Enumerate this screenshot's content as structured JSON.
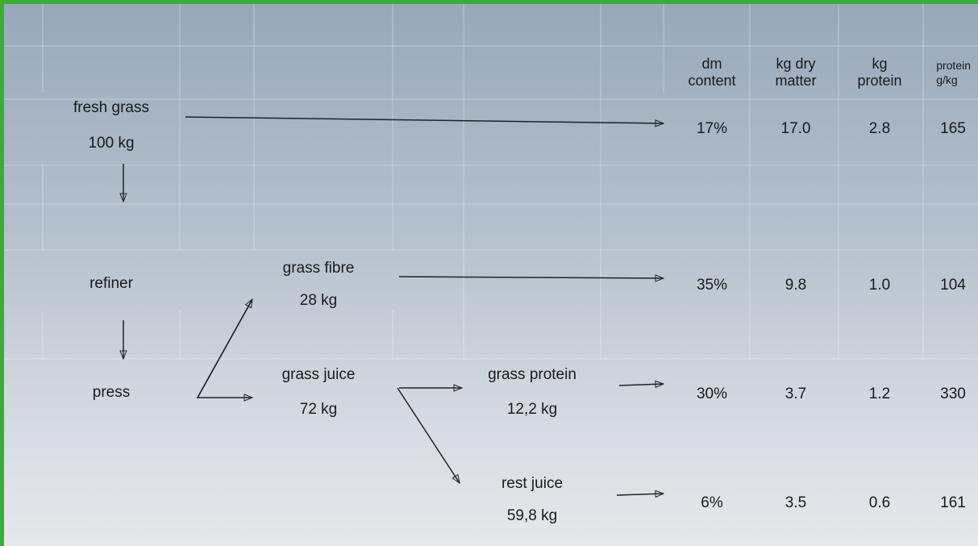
{
  "nodes": [
    {
      "label": "fresh grass",
      "amount": "100 kg"
    },
    {
      "label": "refiner"
    },
    {
      "label": "press"
    },
    {
      "label": "grass fibre",
      "amount": "28 kg"
    },
    {
      "label": "grass juice",
      "amount": "72 kg"
    },
    {
      "label": "grass protein",
      "amount": "12,2 kg"
    },
    {
      "label": "rest juice",
      "amount": "59,8 kg"
    }
  ],
  "table": {
    "header": [
      "dm content",
      "kg dry matter",
      "kg protein",
      "protein g/kg"
    ],
    "rows": [
      [
        "17%",
        "17.0",
        "2.8",
        "165"
      ],
      [
        "35%",
        "9.8",
        "1.0",
        "104"
      ],
      [
        "30%",
        "3.7",
        "1.2",
        "330"
      ],
      [
        "6%",
        "3.5",
        "0.6",
        "161"
      ]
    ]
  }
}
